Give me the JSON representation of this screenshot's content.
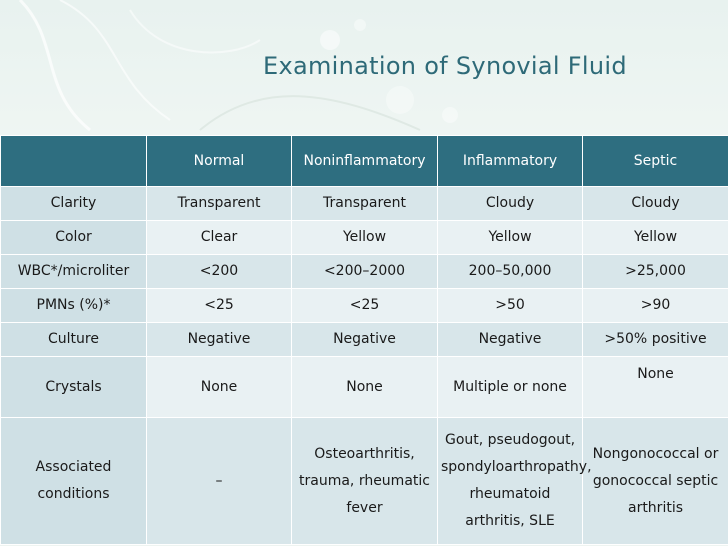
{
  "title": "Examination of Synovial Fluid",
  "headers": [
    "",
    "Normal",
    "Noninflammatory",
    "Inflammatory",
    "Septic"
  ],
  "rows": [
    {
      "label": "Clarity",
      "cells": [
        "Transparent",
        "Transparent",
        "Cloudy",
        "Cloudy"
      ]
    },
    {
      "label": "Color",
      "cells": [
        "Clear",
        "Yellow",
        "Yellow",
        "Yellow"
      ]
    },
    {
      "label": "WBC*/microliter",
      "cells": [
        "<200",
        "<200–2000",
        "200–50,000",
        ">25,000"
      ]
    },
    {
      "label": "PMNs (%)*",
      "cells": [
        "<25",
        "<25",
        ">50",
        ">90"
      ]
    },
    {
      "label": "Culture",
      "cells": [
        "Negative",
        "Negative",
        "Negative",
        ">50% positive"
      ]
    },
    {
      "label": "Crystals",
      "cells": [
        "None",
        "None",
        "Multiple or none",
        "None"
      ]
    },
    {
      "label": "Associated conditions",
      "cells": [
        "–",
        "Osteoarthritis, trauma, rheumatic fever",
        "Gout, pseudogout, spondyloarthropathy, rheumatoid arthritis, SLE",
        "Nongonococcal or gonococcal septic arthritis"
      ]
    }
  ],
  "colors": {
    "header_bg": "#2e6e80",
    "title": "#2e6a78",
    "row_odd": "#d8e6ea",
    "row_even": "#e9f1f3"
  }
}
